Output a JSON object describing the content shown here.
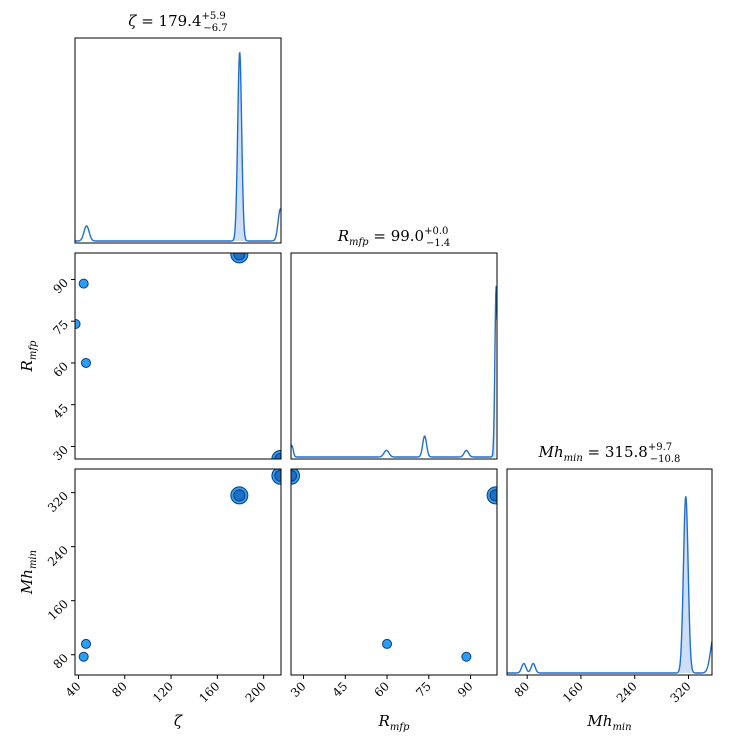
{
  "chart_data": {
    "type": "scatter",
    "kind": "corner-plot",
    "parameters": [
      {
        "key": "zeta",
        "axis_label": "ζ",
        "title_name": "ζ",
        "title_value": "= 179.4",
        "title_plus": "+5.9",
        "title_minus": "−6.7",
        "range": [
          37,
          215
        ],
        "ticks": [
          40,
          80,
          120,
          160,
          200
        ]
      },
      {
        "key": "rmfp",
        "axis_label": "Rmfp",
        "axis_label_main": "R",
        "axis_label_sub": "mfp",
        "title_name_main": "R",
        "title_name_sub": "mfp",
        "title_value": "= 99.0",
        "title_plus": "+0.0",
        "title_minus": "−1.4",
        "range": [
          25.5,
          99.5
        ],
        "ticks": [
          30,
          45,
          60,
          75,
          90
        ]
      },
      {
        "key": "mhmin",
        "axis_label": "Mhmin",
        "axis_label_main": "Mh",
        "axis_label_sub": "min",
        "title_name_main": "Mh",
        "title_name_sub": "min",
        "title_value": "= 315.8",
        "title_plus": "+9.7",
        "title_minus": "−10.8",
        "range": [
          50,
          355
        ],
        "ticks": [
          80,
          160,
          240,
          320
        ]
      }
    ],
    "samples": [
      {
        "zeta": 44.5,
        "rmfp": 88.5,
        "mhmin": 77,
        "size": "small"
      },
      {
        "zeta": 46.5,
        "rmfp": 60.0,
        "mhmin": 96,
        "size": "small"
      },
      {
        "zeta": 37.5,
        "rmfp": 74.0,
        "mhmin": null,
        "size": "small"
      },
      {
        "zeta": 179.0,
        "rmfp": 99.0,
        "mhmin": 316,
        "size": "large"
      },
      {
        "zeta": 214.5,
        "rmfp": 25.5,
        "mhmin": 345,
        "size": "large"
      }
    ],
    "marginals": {
      "zeta": [
        {
          "mu": 47,
          "sigma": 2.2,
          "amp": 0.08
        },
        {
          "mu": 179.3,
          "sigma": 1.7,
          "amp": 1.0
        },
        {
          "mu": 214.5,
          "sigma": 2.0,
          "amp": 0.17
        }
      ],
      "rmfp": [
        {
          "mu": 25.8,
          "sigma": 0.5,
          "amp": 0.06
        },
        {
          "mu": 59.8,
          "sigma": 0.9,
          "amp": 0.035
        },
        {
          "mu": 73.5,
          "sigma": 0.7,
          "amp": 0.11
        },
        {
          "mu": 88.5,
          "sigma": 0.8,
          "amp": 0.035
        },
        {
          "mu": 99.2,
          "sigma": 0.45,
          "amp": 0.9
        }
      ],
      "mhmin": [
        {
          "mu": 75,
          "sigma": 3.2,
          "amp": 0.05
        },
        {
          "mu": 89,
          "sigma": 3.0,
          "amp": 0.05
        },
        {
          "mu": 316,
          "sigma": 3.5,
          "amp": 0.93
        },
        {
          "mu": 358,
          "sigma": 5,
          "amp": 0.2
        }
      ]
    },
    "shaded_intervals": {
      "zeta": [
        172.7,
        185.3
      ],
      "rmfp": [
        97.6,
        99.0
      ],
      "mhmin": [
        305.0,
        325.5
      ]
    },
    "grid": false,
    "legend": "none"
  }
}
